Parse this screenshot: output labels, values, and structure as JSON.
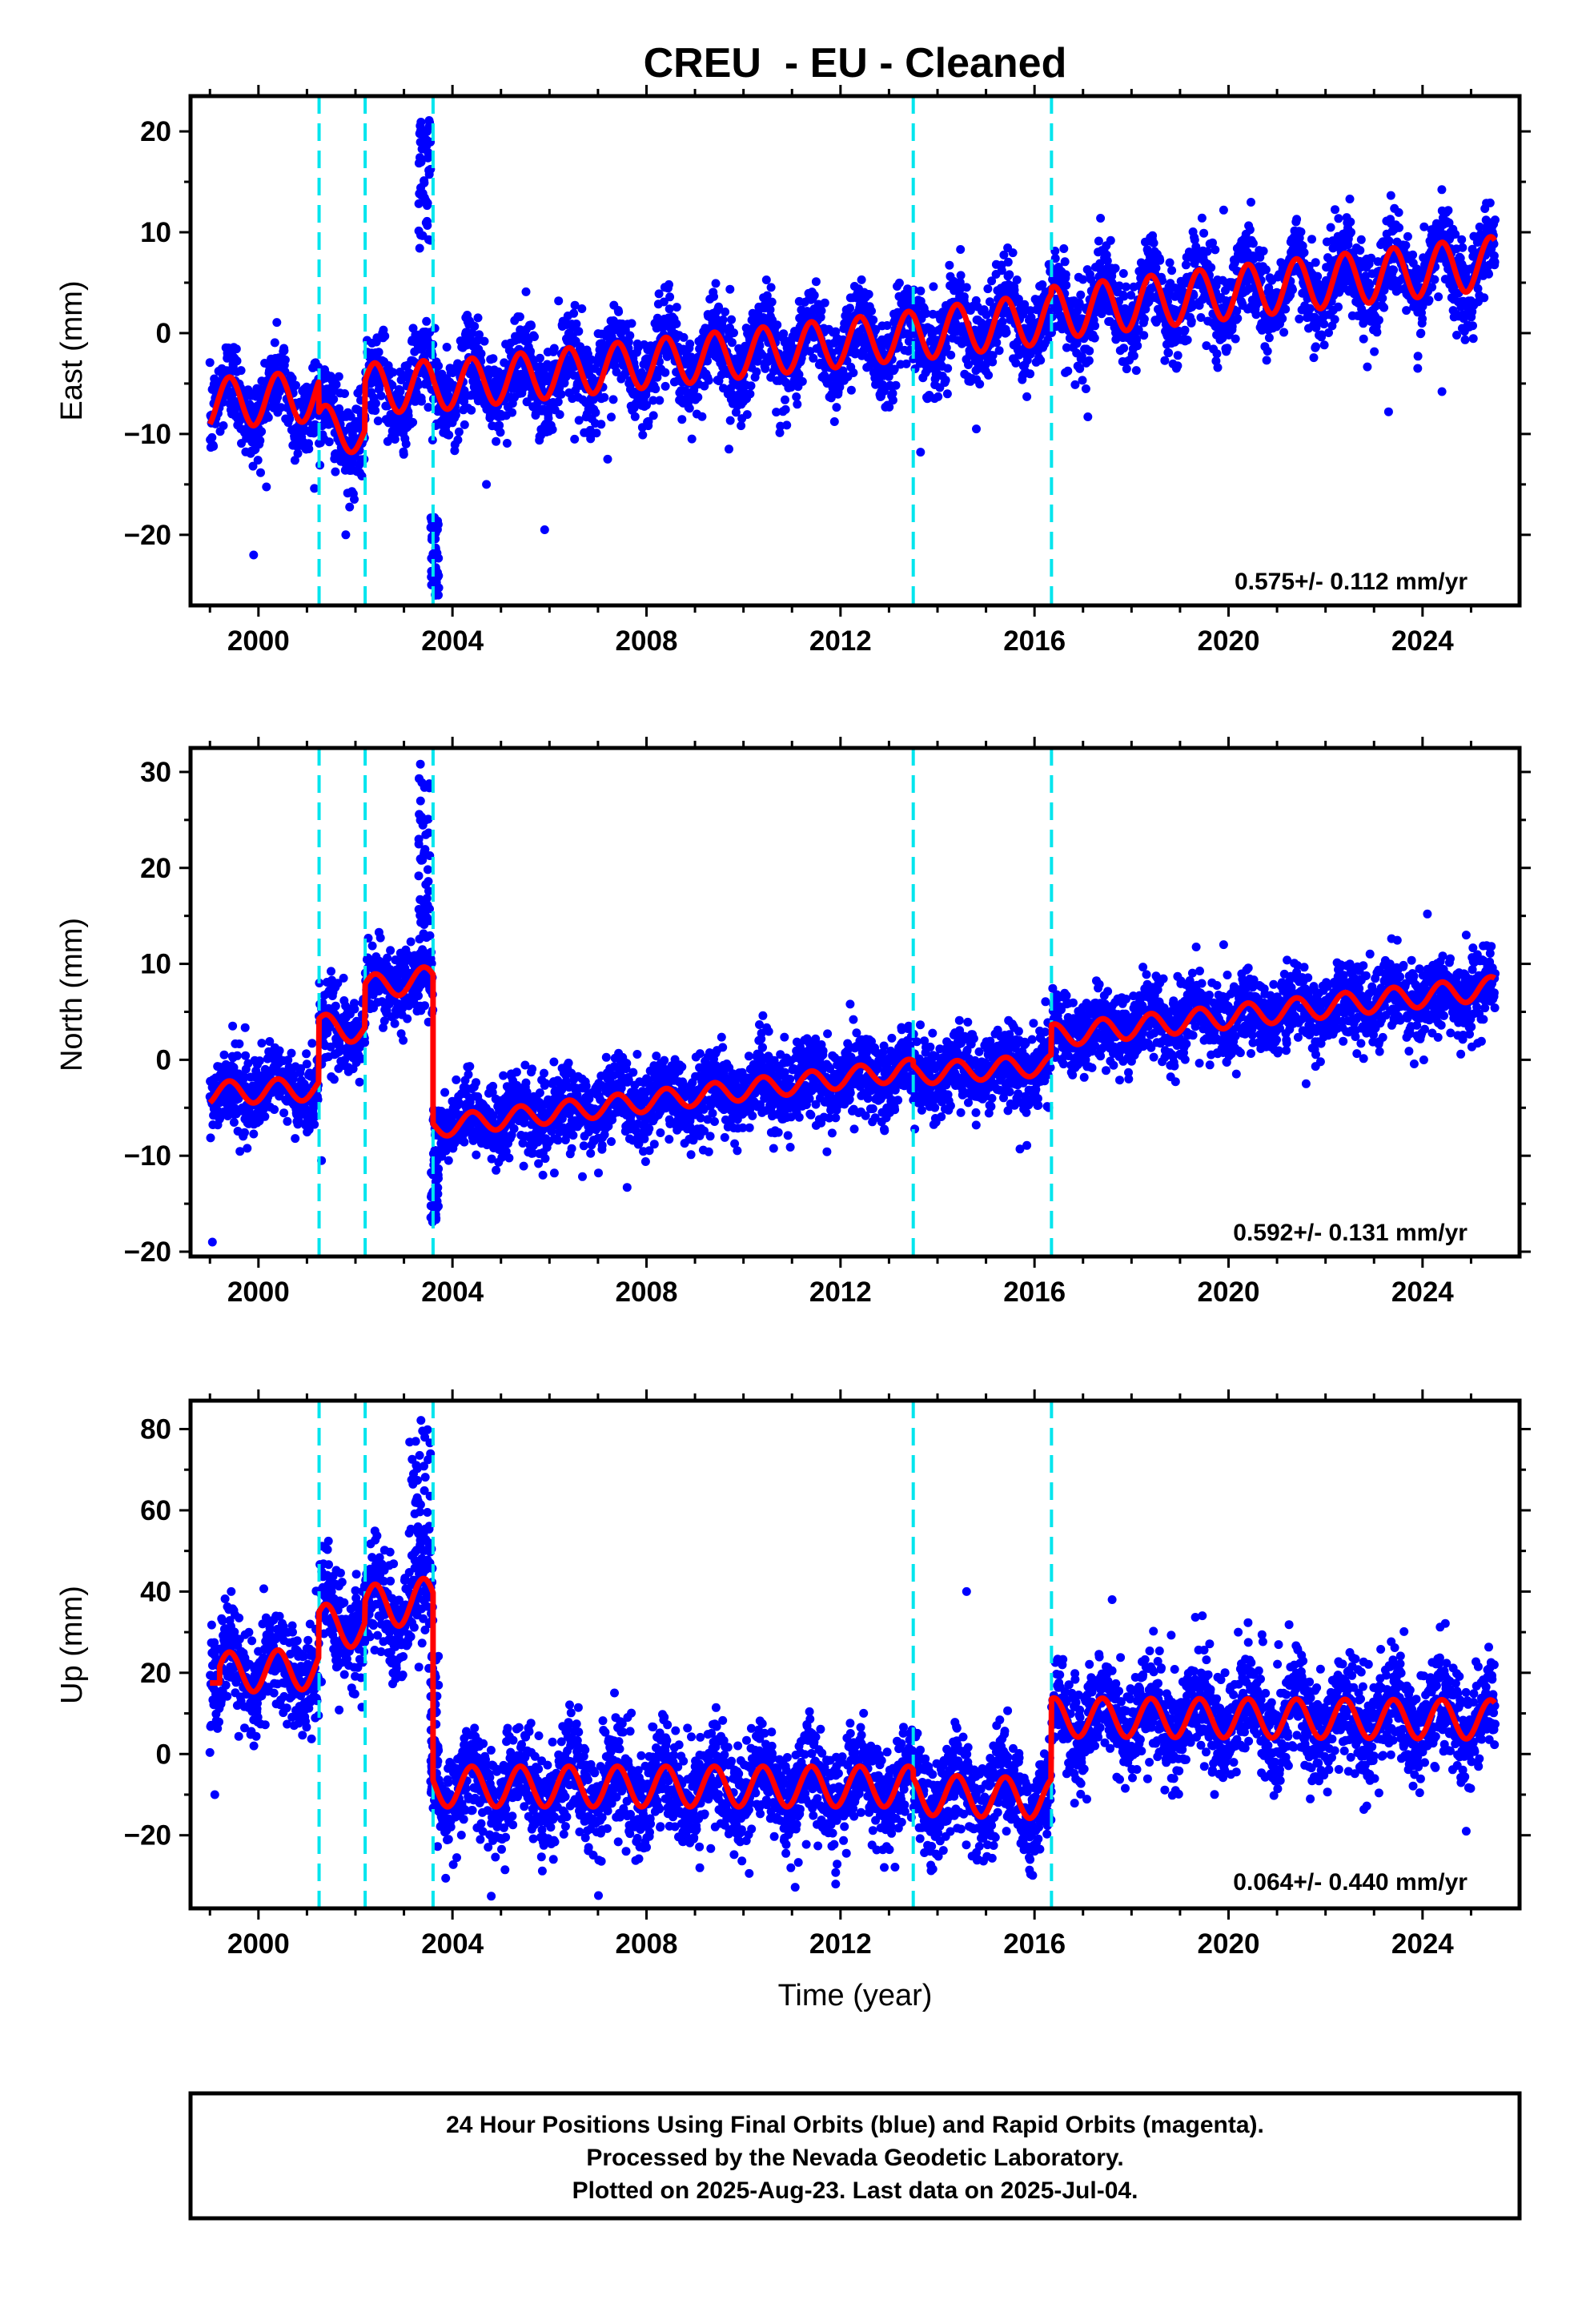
{
  "title": "CREU  - EU - Cleaned",
  "colors": {
    "points": "#0000ff",
    "model": "#ff0000",
    "steps": "#00e5ee",
    "frame": "#000000"
  },
  "xlabel": "Time (year)",
  "x_tick_labels": [
    "2000",
    "2004",
    "2008",
    "2012",
    "2016",
    "2020",
    "2024"
  ],
  "step_years": [
    2001.25,
    2002.2,
    2003.6,
    2013.5,
    2016.35
  ],
  "footer": {
    "line1": "24 Hour Positions Using Final Orbits (blue) and Rapid Orbits (magenta).",
    "line2": "Processed by the Nevada Geodetic Laboratory.",
    "line3": "Plotted on 2025-Aug-23. Last data on 2025-Jul-04."
  },
  "chart_data": [
    {
      "type": "scatter",
      "component": "east",
      "ylabel": "East (mm)",
      "xlim": [
        1998.6,
        2026.0
      ],
      "ylim": [
        -27,
        23.5
      ],
      "yticks": [
        -20,
        -10,
        0,
        10,
        20
      ],
      "ytick_labels": [
        "−20",
        "−10",
        "0",
        "10",
        "20"
      ],
      "rate_label": "0.575+/- 0.112 mm/yr",
      "grid": false,
      "series": [
        {
          "kind": "model",
          "segments": [
            {
              "x0": 1999.0,
              "x1": 2001.25,
              "base0": -7.0,
              "base1": -6.2,
              "amp": 2.5
            },
            {
              "x0": 2001.25,
              "x1": 2002.2,
              "base0": -9.0,
              "base1": -10.2,
              "amp": 2.0
            },
            {
              "x0": 2002.2,
              "x1": 2003.6,
              "base0": -5.5,
              "base1": -5.2,
              "amp": 2.5
            },
            {
              "x0": 2003.6,
              "x1": 2013.5,
              "base0": -5.3,
              "base1": -0.2,
              "amp": 2.4
            },
            {
              "x0": 2013.5,
              "x1": 2016.35,
              "base0": -0.2,
              "base1": 1.5,
              "amp": 2.5
            },
            {
              "x0": 2016.35,
              "x1": 2025.5,
              "base0": 2.0,
              "base1": 7.0,
              "amp": 2.6
            }
          ]
        },
        {
          "kind": "observations",
          "scatter": 2.2,
          "bursts": [
            {
              "x0": 2003.3,
              "x1": 2003.55,
              "y0": 8,
              "y1": 22
            },
            {
              "x0": 2003.55,
              "x1": 2003.72,
              "y0": -26,
              "y1": -18
            }
          ],
          "outliers": [
            [
              1999.9,
              -22
            ],
            [
              2001.8,
              -20
            ],
            [
              2005.9,
              -19.5
            ],
            [
              2004.7,
              -15
            ],
            [
              2009.7,
              -11.5
            ],
            [
              2013.65,
              -11.8
            ],
            [
              2019.9,
              12.2
            ],
            [
              2022.5,
              13.3
            ],
            [
              2023.3,
              -7.8
            ],
            [
              2024.4,
              -5.8
            ],
            [
              2017.1,
              -8.3
            ],
            [
              2007.2,
              -12.5
            ],
            [
              2014.8,
              -9.5
            ],
            [
              2023.9,
              -3.5
            ]
          ]
        }
      ]
    },
    {
      "type": "scatter",
      "component": "north",
      "ylabel": "North (mm)",
      "xlim": [
        1998.6,
        2026.0
      ],
      "ylim": [
        -20.5,
        32.5
      ],
      "yticks": [
        -20,
        -10,
        0,
        10,
        20,
        30
      ],
      "ytick_labels": [
        "−20",
        "−10",
        "0",
        "10",
        "20",
        "30"
      ],
      "rate_label": "0.592+/- 0.131 mm/yr",
      "grid": false,
      "series": [
        {
          "kind": "model",
          "segments": [
            {
              "x0": 1999.0,
              "x1": 2001.25,
              "base0": -3.5,
              "base1": -3.0,
              "amp": 1.2
            },
            {
              "x0": 2001.25,
              "x1": 2002.2,
              "base0": 3.5,
              "base1": 3.0,
              "amp": 1.3
            },
            {
              "x0": 2002.2,
              "x1": 2003.6,
              "base0": 7.5,
              "base1": 8.5,
              "amp": 1.3
            },
            {
              "x0": 2003.6,
              "x1": 2013.5,
              "base0": -7.0,
              "base1": -1.0,
              "amp": 1.1
            },
            {
              "x0": 2013.5,
              "x1": 2016.35,
              "base0": -1.5,
              "base1": -0.5,
              "amp": 1.1
            },
            {
              "x0": 2016.35,
              "x1": 2025.5,
              "base0": 2.5,
              "base1": 7.5,
              "amp": 1.2
            }
          ]
        },
        {
          "kind": "observations",
          "scatter": 2.0,
          "bursts": [
            {
              "x0": 2003.3,
              "x1": 2003.55,
              "y0": 14,
              "y1": 31
            },
            {
              "x0": 2003.55,
              "x1": 2003.72,
              "y0": -17,
              "y1": -9
            }
          ],
          "outliers": [
            [
              1999.05,
              -19
            ],
            [
              2001.3,
              -10.5
            ],
            [
              2007.6,
              -13.3
            ],
            [
              2015.7,
              -9.3
            ],
            [
              2024.1,
              15.2
            ],
            [
              2019.9,
              12
            ],
            [
              2021.6,
              -2.5
            ],
            [
              2006.1,
              -11.8
            ],
            [
              2010.4,
              4.6
            ],
            [
              2012.2,
              5.8
            ],
            [
              2024.9,
              13
            ]
          ]
        }
      ]
    },
    {
      "type": "scatter",
      "component": "up",
      "ylabel": "Up (mm)",
      "xlim": [
        1998.6,
        2026.0
      ],
      "ylim": [
        -38,
        87
      ],
      "yticks": [
        -20,
        0,
        20,
        40,
        60,
        80
      ],
      "ytick_labels": [
        "−20",
        "0",
        "20",
        "40",
        "60",
        "80"
      ],
      "rate_label": "0.064+/- 0.440 mm/yr",
      "grid": false,
      "series": [
        {
          "kind": "model",
          "segments": [
            {
              "x0": 1999.0,
              "x1": 1999.2,
              "base0": 17.5,
              "base1": 17.5,
              "amp": 0.0
            },
            {
              "x0": 1999.2,
              "x1": 2001.25,
              "base0": 20.0,
              "base1": 21.0,
              "amp": 5.0
            },
            {
              "x0": 2001.25,
              "x1": 2002.2,
              "base0": 32.0,
              "base1": 31.0,
              "amp": 5.0
            },
            {
              "x0": 2002.2,
              "x1": 2003.6,
              "base0": 36.0,
              "base1": 38.0,
              "amp": 5.5
            },
            {
              "x0": 2003.6,
              "x1": 2013.5,
              "base0": -8.0,
              "base1": -8.0,
              "amp": 5.0
            },
            {
              "x0": 2013.5,
              "x1": 2016.35,
              "base0": -10.0,
              "base1": -11.0,
              "amp": 5.0
            },
            {
              "x0": 2016.35,
              "x1": 2025.5,
              "base0": 9.0,
              "base1": 8.5,
              "amp": 4.8
            }
          ]
        },
        {
          "kind": "observations",
          "scatter": 6.5,
          "bursts": [
            {
              "x0": 2003.1,
              "x1": 2003.55,
              "y0": 45,
              "y1": 83
            },
            {
              "x0": 2003.55,
              "x1": 2003.72,
              "y0": -10,
              "y1": 25
            }
          ],
          "outliers": [
            [
              2014.6,
              40
            ],
            [
              2017.6,
              38
            ],
            [
              2020.2,
              30
            ],
            [
              2024.9,
              -19
            ],
            [
              2004.8,
              -35
            ],
            [
              2011.9,
              -32
            ],
            [
              2009.1,
              -28
            ],
            [
              1999.1,
              -10
            ],
            [
              2022.5,
              25
            ]
          ]
        }
      ]
    }
  ]
}
